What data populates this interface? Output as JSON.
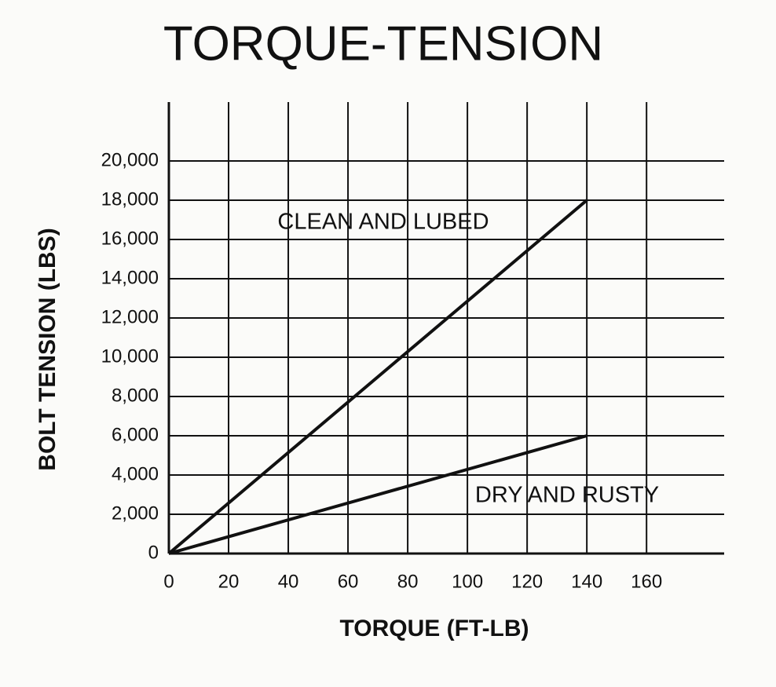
{
  "chart_data": {
    "type": "line",
    "title": "TORQUE-TENSION",
    "x_label": "TORQUE (FT-LB)",
    "y_label": "BOLT TENSION (LBS)",
    "series": [
      {
        "name": "CLEAN AND LUBED",
        "color": "#111111",
        "x": [
          0,
          140
        ],
        "values": [
          0,
          18000
        ]
      },
      {
        "name": "DRY AND RUSTY",
        "color": "#111111",
        "x": [
          0,
          140
        ],
        "values": [
          0,
          6000
        ]
      }
    ],
    "xlim": [
      0,
      186
    ],
    "ylim": [
      0,
      23000
    ],
    "xticks": [
      0,
      20,
      40,
      60,
      80,
      100,
      120,
      140,
      160
    ],
    "yticks": [
      0,
      {
        "value": 2000,
        "label": "2,000"
      },
      {
        "value": 4000,
        "label": "4,000"
      },
      {
        "value": 6000,
        "label": "6,000"
      },
      {
        "value": 8000,
        "label": "8,000"
      },
      {
        "value": 10000,
        "label": "10,000"
      },
      {
        "value": 12000,
        "label": "12,000"
      },
      {
        "value": 14000,
        "label": "14,000"
      },
      {
        "value": 16000,
        "label": "16,000"
      },
      {
        "value": 18000,
        "label": "18,000"
      },
      {
        "value": 20000,
        "label": "20,000"
      }
    ],
    "grid": true
  }
}
